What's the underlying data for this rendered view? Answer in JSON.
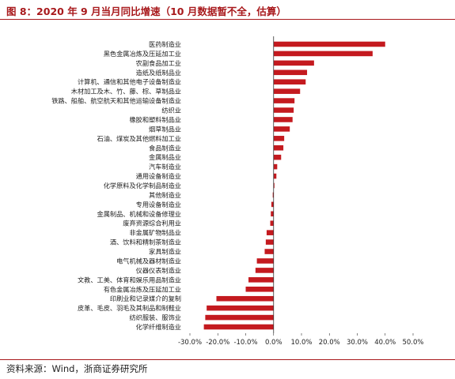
{
  "header": {
    "title": "图 8：2020 年 9 月当月同比增速（10 月数据暂不全，估算）"
  },
  "footer": {
    "source": "资料来源：Wind，浙商证券研究所"
  },
  "colors": {
    "bar": "#c41a1f",
    "accent": "#a8191c",
    "axis": "#333333"
  },
  "chart_data": {
    "type": "bar",
    "orientation": "horizontal",
    "title": "",
    "xlabel": "",
    "ylabel": "",
    "xlim": [
      -30,
      50
    ],
    "xticks": [
      -30,
      -20,
      -10,
      0,
      10,
      20,
      30,
      40,
      50
    ],
    "tick_format": "percent_1dp",
    "grid": false,
    "legend": "none",
    "categories": [
      "医药制造业",
      "黑色金属冶炼及压延加工业",
      "农副食品加工业",
      "造纸及纸制品业",
      "计算机、通信和其他电子设备制造业",
      "木材加工及木、竹、藤、棕、草制品业",
      "铁路、船舶、航空航天和其他运输设备制造业",
      "纺织业",
      "橡胶和塑料制品业",
      "烟草制品业",
      "石油、煤炭及其他燃料加工业",
      "食品制造业",
      "金属制品业",
      "汽车制造业",
      "通用设备制造业",
      "化学原料及化学制品制造业",
      "其他制造业",
      "专用设备制造业",
      "金属制品、机械和设备修理业",
      "废弃资源综合利用业",
      "非金属矿物制品业",
      "酒、饮料和精制茶制造业",
      "家具制造业",
      "电气机械及器材制造业",
      "仪器仪表制造业",
      "文教、工美、体育和娱乐用品制造业",
      "有色金属冶炼及压延加工业",
      "印刷业和记录媒介的复制",
      "皮革、毛皮、羽毛及其制品和制鞋业",
      "纺织服装、服饰业",
      "化学纤维制造业"
    ],
    "values": [
      40.0,
      35.5,
      14.5,
      12.0,
      11.5,
      9.5,
      7.5,
      7.2,
      6.8,
      5.8,
      3.8,
      3.5,
      2.7,
      1.3,
      1.0,
      0.3,
      -0.3,
      -0.8,
      -1.0,
      -1.2,
      -2.5,
      -2.8,
      -3.2,
      -6.0,
      -6.5,
      -9.0,
      -10.0,
      -20.5,
      -24.0,
      -24.5,
      -25.0
    ]
  }
}
